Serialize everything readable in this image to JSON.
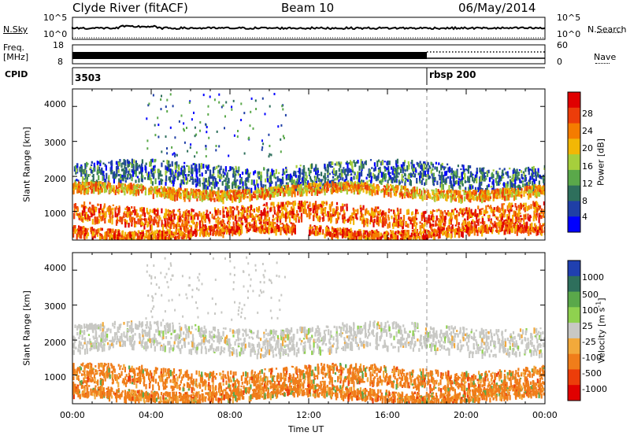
{
  "header": {
    "title": "Clyde River (fitACF)",
    "beam": "Beam 10",
    "date": "06/May/2014"
  },
  "top_panels": {
    "nsky_label": "N.Sky",
    "nsky_ticks": [
      "10^5",
      "10^0"
    ],
    "nsearch_label": "N.Search",
    "nsearch_ticks": [
      "10^5",
      "10^0"
    ],
    "freq_label_1": "Freq.",
    "freq_label_2": "[MHz]",
    "freq_ticks": [
      "18",
      "8"
    ],
    "nave_label": "Nave",
    "nave_ticks": [
      "60",
      "0"
    ],
    "cpid_label": "CPID",
    "cpid_values": [
      "3503",
      "rbsp 200"
    ]
  },
  "chart_data": [
    {
      "type": "heatmap",
      "title": "",
      "quantity": "Power",
      "ylabel": "Slant Range [km]",
      "ylim": [
        180,
        4500
      ],
      "yticks": [
        "4000",
        "3000",
        "2000",
        "1000"
      ],
      "xlabel": "",
      "colorbar_label": "Power [dB]",
      "colorbar_ticks": [
        "28",
        "24",
        "20",
        "16",
        "12",
        "8",
        "4"
      ],
      "colors": [
        "#0000ff",
        "#1f3fa6",
        "#2e6f5c",
        "#5aa84a",
        "#a6cf3c",
        "#f2b705",
        "#f57c00",
        "#ec3d0a",
        "#e00000"
      ],
      "bands": [
        {
          "range_km": [
            1750,
            2400
          ],
          "power_db": 12
        },
        {
          "range_km": [
            1500,
            1750
          ],
          "power_db": 22
        },
        {
          "range_km": [
            700,
            1200
          ],
          "power_db": 24
        },
        {
          "range_km": [
            350,
            600
          ],
          "power_db": 26
        }
      ]
    },
    {
      "type": "heatmap",
      "title": "",
      "quantity": "Velocity",
      "ylabel": "Slant Range [km]",
      "ylim": [
        180,
        4500
      ],
      "yticks": [
        "4000",
        "3000",
        "2000",
        "1000"
      ],
      "xlabel": "Time UT",
      "xticks": [
        "00:00",
        "04:00",
        "08:00",
        "12:00",
        "16:00",
        "20:00",
        "00:00"
      ],
      "colorbar_label": "Velocity [m s",
      "colorbar_label_sup": "-1",
      "colorbar_label_end": "]",
      "colorbar_ticks": [
        "1000",
        "500",
        "100",
        "25",
        "-25",
        "-100",
        "-500",
        "-1000"
      ],
      "colors": [
        "#2040b0",
        "#2e6f5c",
        "#5aa84a",
        "#8fd14f",
        "#c8c8c4",
        "#f2a93b",
        "#f07d1a",
        "#ec3d0a",
        "#e00000"
      ],
      "bands": [
        {
          "range_km": [
            1700,
            2450
          ],
          "velocity_ms": 0
        },
        {
          "range_km": [
            700,
            1250
          ],
          "velocity_ms": -200
        },
        {
          "range_km": [
            350,
            650
          ],
          "velocity_ms": -150
        }
      ]
    }
  ]
}
